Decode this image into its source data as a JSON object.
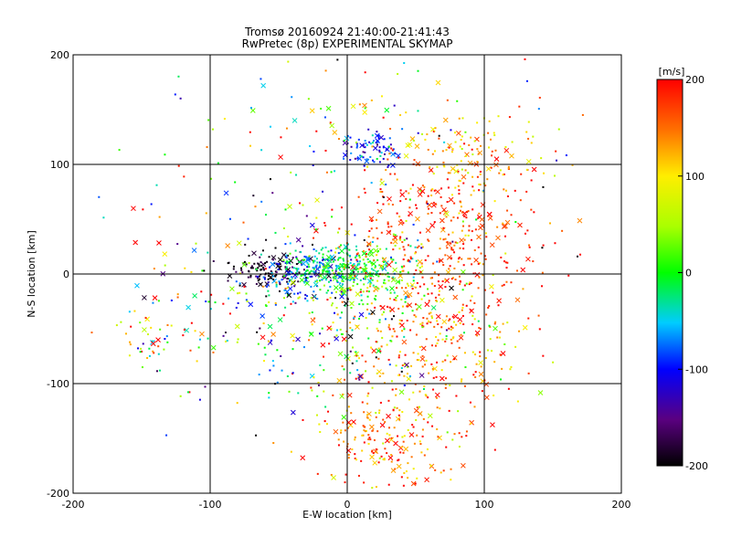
{
  "chart_data": {
    "type": "scatter",
    "title": "Tromsø 20160924 21:40:00-21:41:43",
    "subtitle": "RwPretec (8p) EXPERIMENTAL SKYMAP",
    "xlabel": "E-W location [km]",
    "ylabel": "N-S location [km]",
    "xlim": [
      -200,
      200
    ],
    "ylim": [
      -200,
      200
    ],
    "x_ticks": [
      -200,
      -100,
      0,
      100,
      200
    ],
    "y_ticks": [
      -200,
      -100,
      0,
      100,
      200
    ],
    "x_tick_labels": [
      "-200",
      "-100",
      "0",
      "100",
      "200"
    ],
    "y_tick_labels": [
      "-200",
      "-100",
      "0",
      "100",
      "200"
    ],
    "grid": true,
    "marker_types": [
      "dot",
      "x"
    ],
    "colorbar": {
      "label": "[m/s]",
      "range": [
        -200,
        200
      ],
      "ticks": [
        -200,
        -100,
        0,
        100,
        200
      ],
      "tick_labels": [
        "-200",
        "-100",
        "0",
        "100",
        "200"
      ],
      "colormap": "rainbow (black-purple-blue-cyan-green-yellow-orange-red)"
    },
    "clusters_description": [
      {
        "center": [
          -60,
          5
        ],
        "velocity": -200
      },
      {
        "center": [
          -30,
          0
        ],
        "velocity": -80
      },
      {
        "center": [
          -10,
          5
        ],
        "velocity": -20
      },
      {
        "center": [
          20,
          0
        ],
        "velocity": 20
      },
      {
        "center": [
          20,
          115
        ],
        "velocity": -100
      },
      {
        "center": [
          70,
          30
        ],
        "velocity": 180
      },
      {
        "center": [
          80,
          110
        ],
        "velocity": 110
      },
      {
        "center": [
          60,
          -60
        ],
        "velocity": 140
      },
      {
        "center": [
          30,
          -150
        ],
        "velocity": 150
      },
      {
        "center": [
          -140,
          -60
        ],
        "velocity": 60
      }
    ]
  }
}
